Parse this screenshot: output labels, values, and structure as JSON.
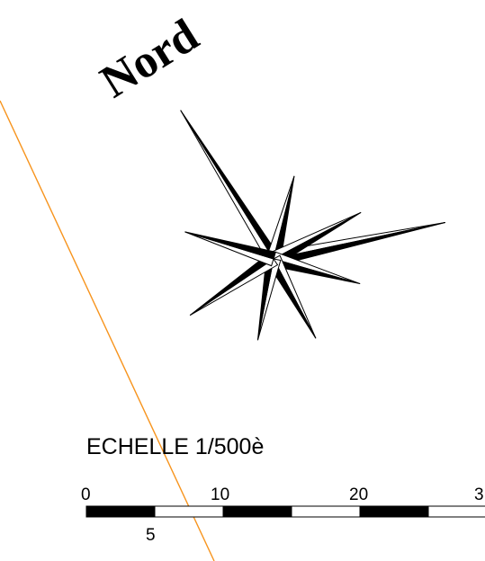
{
  "north_arrow": {
    "label": "Nord",
    "icon": "compass-rose-icon"
  },
  "boundary_line": {
    "color": "#f7941d"
  },
  "scale": {
    "title": "ECHELLE 1/500è",
    "major_ticks": [
      "0",
      "10",
      "20",
      "3"
    ],
    "minor_tick": "5",
    "bar_colors": [
      "#000000",
      "#ffffff"
    ]
  }
}
